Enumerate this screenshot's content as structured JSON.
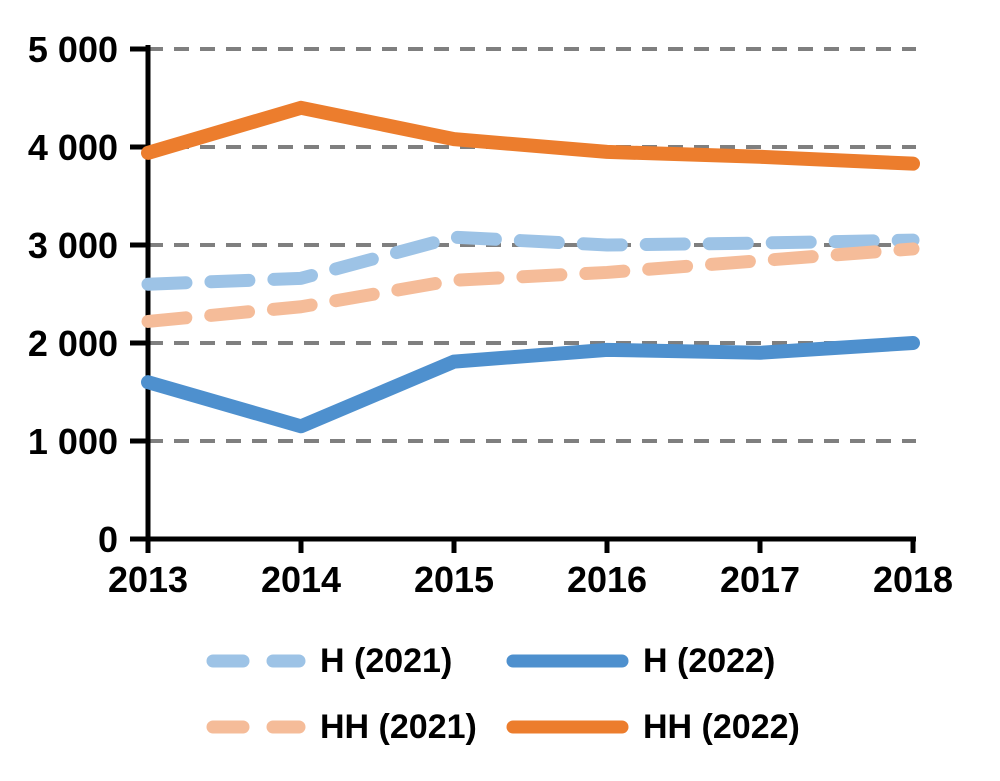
{
  "chart_data": {
    "type": "line",
    "title": "",
    "categories": [
      "2013",
      "2014",
      "2015",
      "2016",
      "2017",
      "2018"
    ],
    "series": [
      {
        "name": "H (2021)",
        "style": "dashed",
        "color": "#9DC3E6",
        "values": [
          2600,
          2660,
          3080,
          3000,
          3020,
          3050
        ]
      },
      {
        "name": "H (2022)",
        "style": "solid",
        "color": "#4E90CE",
        "values": [
          1600,
          1150,
          1810,
          1930,
          1900,
          2000
        ]
      },
      {
        "name": "HH (2021)",
        "style": "dashed",
        "color": "#F5BC99",
        "values": [
          2220,
          2370,
          2640,
          2720,
          2840,
          2960
        ]
      },
      {
        "name": "HH (2022)",
        "style": "solid",
        "color": "#EC7D2D",
        "values": [
          3940,
          4400,
          4080,
          3950,
          3900,
          3830
        ]
      }
    ],
    "xlabel": "",
    "ylabel": "",
    "ylim": [
      0,
      5000
    ],
    "y_tick_values": [
      0,
      1000,
      2000,
      3000,
      4000,
      5000
    ],
    "y_tick_labels": [
      "0",
      "1 000",
      "2 000",
      "3 000",
      "4 000",
      "5 000"
    ],
    "grid": "horizontal-dashed",
    "gridline_color": "#7F7F7F",
    "axis_color": "#000000",
    "legend_position": "bottom"
  },
  "legend": {
    "items": [
      {
        "label": "H (2021)"
      },
      {
        "label": "H (2022)"
      },
      {
        "label": "HH (2021)"
      },
      {
        "label": "HH (2022)"
      }
    ]
  }
}
